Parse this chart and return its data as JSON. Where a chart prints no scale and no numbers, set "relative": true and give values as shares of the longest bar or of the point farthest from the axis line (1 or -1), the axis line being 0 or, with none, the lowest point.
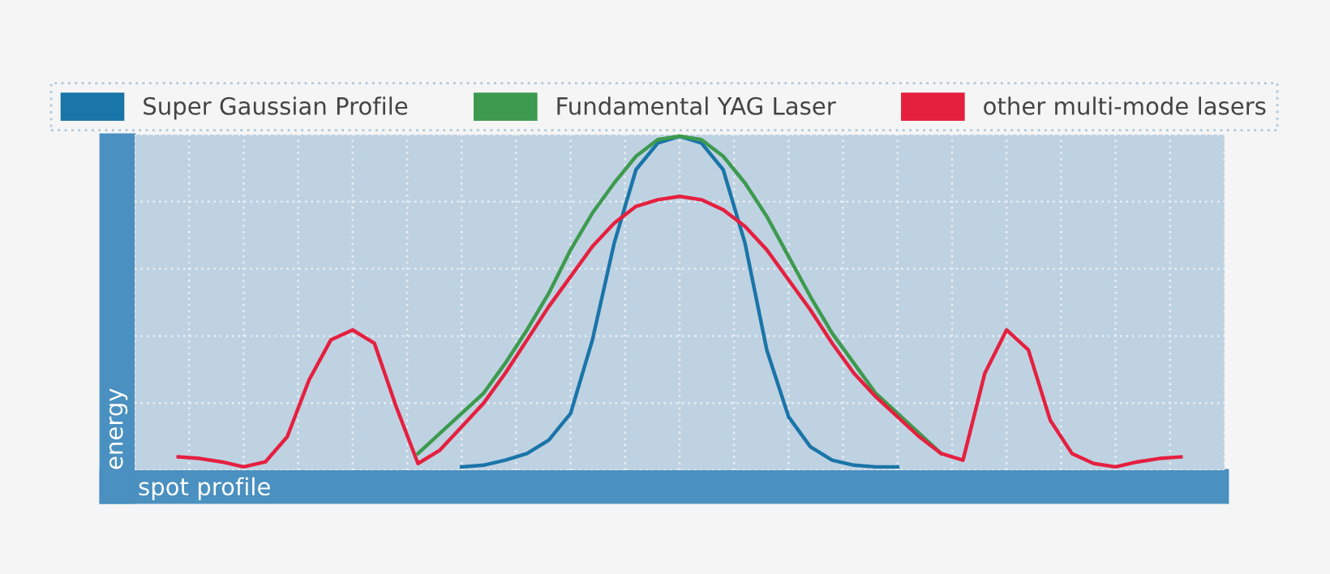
{
  "chart_data": {
    "type": "line",
    "relative": true,
    "xlabel": "spot profile",
    "ylabel": "energy",
    "grid": true,
    "legend": "top",
    "tick_labels": false,
    "marker": "none",
    "line_style": "solid",
    "categories": [
      null,
      null,
      null,
      null,
      null,
      null,
      null,
      null,
      null,
      null,
      null,
      null,
      null,
      null,
      null,
      null,
      null,
      null,
      null,
      null,
      null,
      null,
      null,
      null,
      null,
      null,
      null,
      null,
      null,
      null,
      null,
      null,
      null,
      null,
      null,
      null,
      null,
      null,
      null,
      null,
      null,
      null,
      null,
      null,
      null,
      null,
      null,
      null,
      null,
      null,
      null
    ],
    "series": [
      {
        "name": "Super Gaussian Profile",
        "color": "#1a75a8",
        "values": [
          null,
          null,
          null,
          null,
          null,
          null,
          null,
          null,
          null,
          null,
          null,
          null,
          null,
          null,
          null,
          0.01,
          0.015,
          0.03,
          0.05,
          0.09,
          0.17,
          0.39,
          0.68,
          0.9,
          0.98,
          1.0,
          0.98,
          0.9,
          0.68,
          0.36,
          0.16,
          0.07,
          0.03,
          0.015,
          0.01,
          0.01,
          null,
          null,
          null,
          null,
          null,
          null,
          null,
          null,
          null,
          null,
          null,
          null,
          null,
          null,
          null
        ]
      },
      {
        "name": "Fundamental YAG Laser",
        "color": "#3d9a4e",
        "values": [
          null,
          null,
          null,
          null,
          null,
          null,
          null,
          null,
          null,
          null,
          null,
          null,
          null,
          0.05,
          0.11,
          0.17,
          0.23,
          0.32,
          0.42,
          0.53,
          0.66,
          0.77,
          0.86,
          0.94,
          0.99,
          1.0,
          0.99,
          0.94,
          0.86,
          0.76,
          0.64,
          0.52,
          0.41,
          0.32,
          0.23,
          0.17,
          0.11,
          0.05,
          null,
          null,
          null,
          null,
          null,
          null,
          null,
          null,
          null,
          null,
          null,
          null,
          null
        ]
      },
      {
        "name": "other multi-mode lasers",
        "color": "#e5203f",
        "values": [
          null,
          null,
          0.04,
          0.035,
          0.025,
          0.01,
          0.025,
          0.1,
          0.27,
          0.39,
          0.42,
          0.38,
          0.19,
          0.02,
          0.06,
          0.13,
          0.2,
          0.29,
          0.39,
          0.49,
          0.58,
          0.67,
          0.74,
          0.79,
          0.81,
          0.82,
          0.81,
          0.78,
          0.73,
          0.66,
          0.57,
          0.48,
          0.38,
          0.29,
          0.22,
          0.16,
          0.1,
          0.05,
          0.03,
          0.29,
          0.42,
          0.36,
          0.15,
          0.05,
          0.02,
          0.01,
          0.025,
          0.035,
          0.04,
          null,
          null
        ]
      }
    ]
  }
}
